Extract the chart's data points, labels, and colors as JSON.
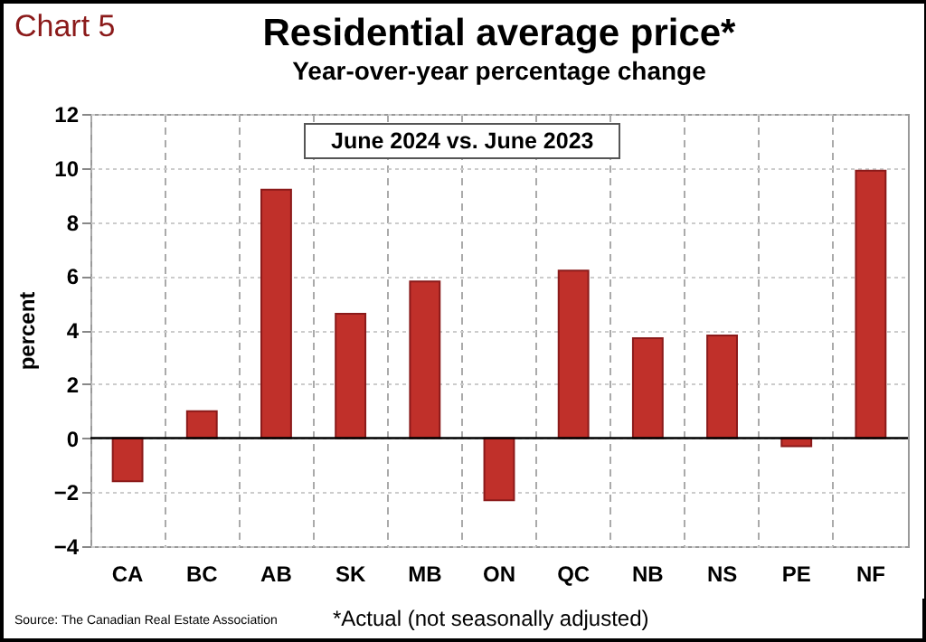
{
  "chart_data": {
    "type": "bar",
    "title": "Residential average price*",
    "subtitle": "Year-over-year percentage change",
    "ylabel": "percent",
    "categories": [
      "CA",
      "BC",
      "AB",
      "SK",
      "MB",
      "ON",
      "QC",
      "NB",
      "NS",
      "PE",
      "NF"
    ],
    "values": [
      -1.6,
      1.0,
      9.2,
      4.6,
      5.8,
      -2.3,
      6.2,
      3.7,
      3.8,
      -0.3,
      9.9
    ],
    "color": "#c0302a",
    "ylim": [
      -4,
      12
    ],
    "yticks": [
      -4,
      -2,
      0,
      2,
      4,
      6,
      8,
      10,
      12
    ],
    "grid": true,
    "ref_lines": [
      {
        "axis": "y",
        "value": 0,
        "color": "#000000"
      }
    ],
    "annotations": [
      "Chart 5",
      "June 2024 vs. June 2023",
      "Source: The Canadian Real Estate Association",
      "*Actual (not seasonally adjusted)"
    ]
  }
}
